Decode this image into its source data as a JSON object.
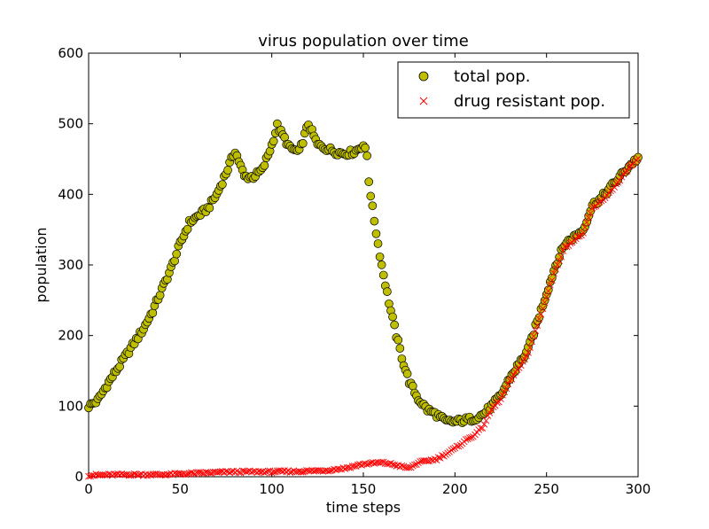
{
  "chart_data": {
    "type": "scatter",
    "title": "virus population over time",
    "xlabel": "time steps",
    "ylabel": "population",
    "xlim": [
      0,
      300
    ],
    "ylim": [
      0,
      600
    ],
    "xticks": [
      "0",
      "50",
      "100",
      "150",
      "200",
      "250",
      "300"
    ],
    "yticks": [
      "0",
      "100",
      "200",
      "300",
      "400",
      "500",
      "600"
    ],
    "grid": false,
    "legend_position": "top-right",
    "series": [
      {
        "name": "total pop.",
        "marker": "circle",
        "color": "#bfbf00",
        "edge_color": "#000000",
        "keypoints": [
          [
            0,
            100
          ],
          [
            5,
            108
          ],
          [
            10,
            130
          ],
          [
            15,
            150
          ],
          [
            20,
            170
          ],
          [
            25,
            190
          ],
          [
            30,
            210
          ],
          [
            35,
            235
          ],
          [
            40,
            265
          ],
          [
            45,
            295
          ],
          [
            50,
            330
          ],
          [
            55,
            360
          ],
          [
            60,
            370
          ],
          [
            65,
            380
          ],
          [
            70,
            400
          ],
          [
            75,
            430
          ],
          [
            80,
            462
          ],
          [
            85,
            425
          ],
          [
            90,
            425
          ],
          [
            95,
            435
          ],
          [
            100,
            470
          ],
          [
            103,
            497
          ],
          [
            110,
            465
          ],
          [
            115,
            460
          ],
          [
            120,
            500
          ],
          [
            125,
            470
          ],
          [
            130,
            465
          ],
          [
            135,
            460
          ],
          [
            140,
            458
          ],
          [
            145,
            460
          ],
          [
            150,
            470
          ],
          [
            152,
            455
          ],
          [
            153,
            420
          ],
          [
            155,
            380
          ],
          [
            158,
            330
          ],
          [
            160,
            300
          ],
          [
            163,
            260
          ],
          [
            165,
            235
          ],
          [
            168,
            200
          ],
          [
            172,
            160
          ],
          [
            175,
            135
          ],
          [
            180,
            110
          ],
          [
            185,
            95
          ],
          [
            190,
            88
          ],
          [
            195,
            78
          ],
          [
            200,
            78
          ],
          [
            205,
            80
          ],
          [
            210,
            82
          ],
          [
            215,
            88
          ],
          [
            220,
            100
          ],
          [
            225,
            115
          ],
          [
            230,
            140
          ],
          [
            235,
            160
          ],
          [
            240,
            180
          ],
          [
            245,
            220
          ],
          [
            250,
            260
          ],
          [
            255,
            300
          ],
          [
            260,
            330
          ],
          [
            265,
            340
          ],
          [
            270,
            350
          ],
          [
            275,
            385
          ],
          [
            280,
            395
          ],
          [
            285,
            410
          ],
          [
            290,
            425
          ],
          [
            295,
            440
          ],
          [
            300,
            452
          ]
        ]
      },
      {
        "name": "drug resistant pop.",
        "marker": "x",
        "color": "#ff0000",
        "keypoints": [
          [
            0,
            2
          ],
          [
            20,
            3
          ],
          [
            40,
            3
          ],
          [
            60,
            5
          ],
          [
            80,
            7
          ],
          [
            100,
            7
          ],
          [
            120,
            8
          ],
          [
            130,
            9
          ],
          [
            140,
            12
          ],
          [
            150,
            18
          ],
          [
            160,
            20
          ],
          [
            165,
            18
          ],
          [
            170,
            15
          ],
          [
            175,
            12
          ],
          [
            180,
            20
          ],
          [
            190,
            25
          ],
          [
            195,
            32
          ],
          [
            200,
            40
          ],
          [
            205,
            50
          ],
          [
            210,
            58
          ],
          [
            215,
            70
          ],
          [
            220,
            95
          ],
          [
            225,
            110
          ],
          [
            230,
            135
          ],
          [
            235,
            155
          ],
          [
            240,
            175
          ],
          [
            245,
            215
          ],
          [
            250,
            255
          ],
          [
            255,
            295
          ],
          [
            260,
            325
          ],
          [
            265,
            335
          ],
          [
            270,
            345
          ],
          [
            275,
            380
          ],
          [
            280,
            390
          ],
          [
            285,
            405
          ],
          [
            290,
            420
          ],
          [
            295,
            438
          ],
          [
            300,
            450
          ]
        ]
      }
    ]
  }
}
